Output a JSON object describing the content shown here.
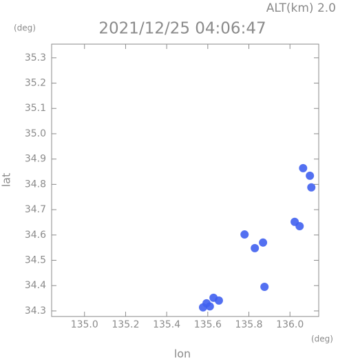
{
  "chart_data": {
    "type": "scatter",
    "altitude_label": "ALT(km) 2.0",
    "title": "2021/12/25 04:06:47",
    "y_unit": "(deg)",
    "x_unit": "(deg)",
    "xlabel": "lon",
    "ylabel": "lat",
    "xlim": [
      134.84,
      136.14
    ],
    "ylim": [
      34.278,
      35.354
    ],
    "xticks": [
      {
        "value": 135.0,
        "label": "135.0"
      },
      135.2,
      135.4,
      135.6,
      135.8,
      {
        "value": 136.0,
        "label": "136.0"
      }
    ],
    "yticks": [
      34.3,
      34.4,
      34.5,
      34.6,
      34.7,
      34.8,
      34.9,
      {
        "value": 35.0,
        "label": "35.0"
      },
      35.1,
      35.2,
      35.3
    ],
    "series": [
      {
        "color": "#4060f0",
        "x": [
          135.577,
          135.594,
          135.61,
          135.628,
          135.654,
          135.779,
          135.829,
          135.869,
          135.876,
          136.023,
          136.047,
          136.104,
          136.097,
          136.064
        ],
        "values": [
          34.314,
          34.33,
          34.318,
          34.352,
          34.341,
          34.602,
          34.548,
          34.57,
          34.395,
          34.652,
          34.635,
          34.788,
          34.834,
          34.864
        ]
      }
    ]
  }
}
